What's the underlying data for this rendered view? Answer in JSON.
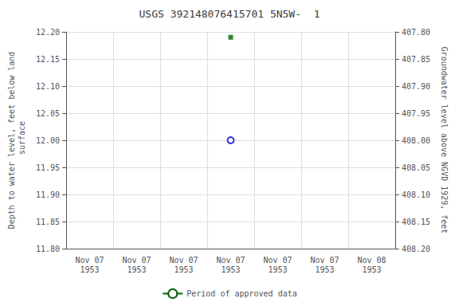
{
  "chart_data": {
    "type": "scatter",
    "title": "USGS 392148076415701 5N5W-  1",
    "ylabel": "Depth to water level, feet below land\n surface",
    "y2label": "Groundwater level above NGVD 1929, feet",
    "categories": [
      "Nov 07\n1953",
      "Nov 07\n1953",
      "Nov 07\n1953",
      "Nov 07\n1953",
      "Nov 07\n1953",
      "Nov 07\n1953",
      "Nov 08\n1953"
    ],
    "ylim": [
      11.8,
      12.2
    ],
    "yticks": [
      {
        "value": 11.8,
        "label": "11.80"
      },
      {
        "value": 11.85,
        "label": "11.85"
      },
      {
        "value": 11.9,
        "label": "11.90"
      },
      {
        "value": 11.95,
        "label": "11.95"
      },
      {
        "value": 12.0,
        "label": "12.00"
      },
      {
        "value": 12.05,
        "label": "12.05"
      },
      {
        "value": 12.1,
        "label": "12.10"
      },
      {
        "value": 12.15,
        "label": "12.15"
      },
      {
        "value": 12.2,
        "label": "12.20"
      }
    ],
    "y2lim": [
      408.2,
      407.8
    ],
    "y2ticks": [
      {
        "value": 408.2,
        "label": "408.20"
      },
      {
        "value": 408.15,
        "label": "408.15"
      },
      {
        "value": 408.1,
        "label": "408.10"
      },
      {
        "value": 408.05,
        "label": "408.05"
      },
      {
        "value": 408.0,
        "label": "408.00"
      },
      {
        "value": 407.95,
        "label": "407.95"
      },
      {
        "value": 407.9,
        "label": "407.90"
      },
      {
        "value": 407.85,
        "label": "407.85"
      },
      {
        "value": 407.8,
        "label": "407.80"
      }
    ],
    "grid": true,
    "legend": "bottom",
    "series": [
      {
        "type": "scatter",
        "marker": "open_circle",
        "color": "#0000cc",
        "values": [
          null,
          null,
          null,
          12.0,
          null,
          null,
          null
        ]
      },
      {
        "type": "scatter",
        "marker": "square",
        "color": "#006400",
        "values": [
          null,
          null,
          null,
          12.19,
          null,
          null,
          null
        ]
      },
      {
        "name": "Period of approved data",
        "type": "line",
        "color": "#006400",
        "values": [
          null,
          null,
          null,
          null,
          null,
          null,
          null
        ]
      }
    ]
  }
}
